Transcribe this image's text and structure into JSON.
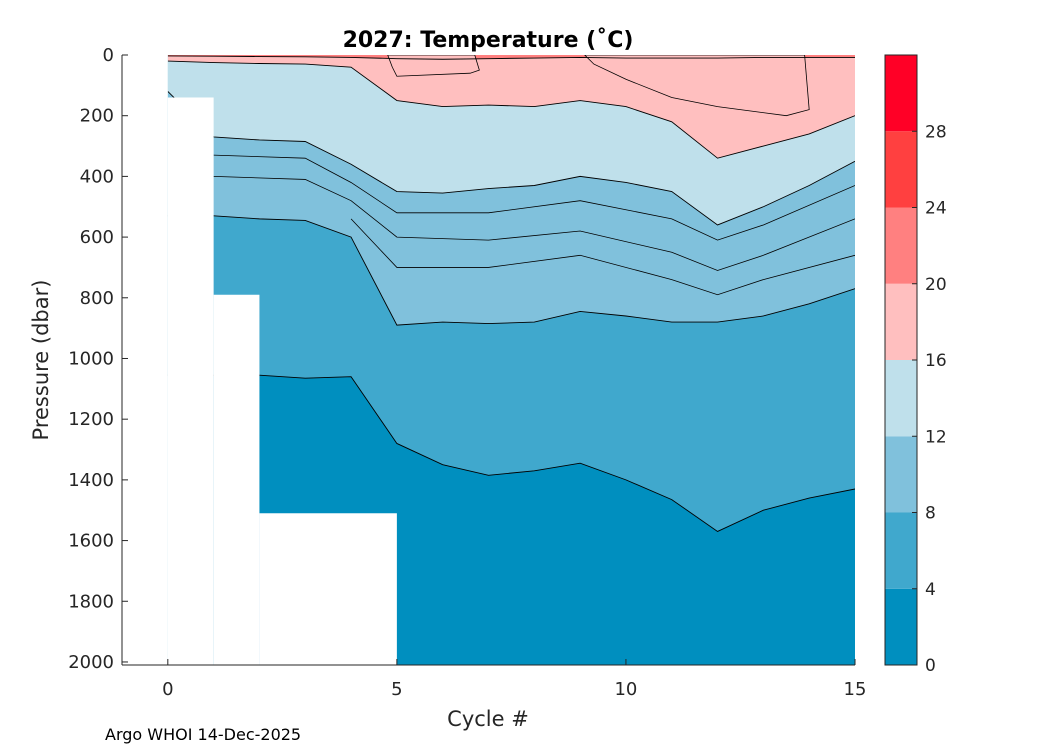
{
  "chart_data": {
    "type": "filled-contour",
    "title": "2027:  Temperature (˚C)",
    "xlabel": "Cycle #",
    "ylabel": "Pressure (dbar)",
    "xlim": [
      -1,
      15
    ],
    "ylim": [
      2010,
      0
    ],
    "x_ticks": [
      0,
      5,
      10,
      15
    ],
    "y_ticks": [
      0,
      200,
      400,
      600,
      800,
      1000,
      1200,
      1400,
      1600,
      1800,
      2000
    ],
    "colorbar": {
      "levels": [
        0,
        4,
        8,
        12,
        16,
        20,
        24,
        28,
        32
      ],
      "tick_labels": [
        0,
        4,
        8,
        12,
        16,
        20,
        24,
        28
      ],
      "colors": [
        "#008fbf",
        "#40a8cd",
        "#80c1dc",
        "#bfe0eb",
        "#ffbfbf",
        "#ff8080",
        "#ff4040",
        "#ff0026"
      ]
    },
    "profile_max_pressure": [
      {
        "cycle": 0,
        "pressure": 140
      },
      {
        "cycle": 1,
        "pressure": 790
      },
      {
        "cycle": 2,
        "pressure": 1510
      },
      {
        "cycle": 5,
        "pressure": 2010
      }
    ],
    "isotherms": [
      {
        "temp": 4,
        "points": [
          [
            2,
            1055
          ],
          [
            3,
            1065
          ],
          [
            4,
            1060
          ],
          [
            5,
            1280
          ],
          [
            6,
            1350
          ],
          [
            7,
            1385
          ],
          [
            8,
            1370
          ],
          [
            9,
            1345
          ],
          [
            10,
            1400
          ],
          [
            11,
            1465
          ],
          [
            12,
            1570
          ],
          [
            13,
            1500
          ],
          [
            14,
            1460
          ],
          [
            15,
            1430
          ]
        ]
      },
      {
        "temp": 8,
        "points": [
          [
            1,
            530
          ],
          [
            2,
            540
          ],
          [
            3,
            545
          ],
          [
            4,
            600
          ],
          [
            5,
            890
          ],
          [
            6,
            880
          ],
          [
            7,
            885
          ],
          [
            8,
            880
          ],
          [
            9,
            845
          ],
          [
            10,
            860
          ],
          [
            11,
            880
          ],
          [
            12,
            880
          ],
          [
            13,
            860
          ],
          [
            14,
            820
          ],
          [
            15,
            770
          ]
        ]
      },
      {
        "temp": 12,
        "points": [
          [
            0,
            120
          ],
          [
            1,
            270
          ],
          [
            2,
            280
          ],
          [
            3,
            285
          ],
          [
            4,
            360
          ],
          [
            5,
            450
          ],
          [
            6,
            455
          ],
          [
            7,
            440
          ],
          [
            8,
            430
          ],
          [
            9,
            400
          ],
          [
            10,
            420
          ],
          [
            11,
            450
          ],
          [
            12,
            560
          ],
          [
            13,
            500
          ],
          [
            14,
            430
          ],
          [
            15,
            350
          ]
        ]
      },
      {
        "temp": 16,
        "points": [
          [
            0,
            20
          ],
          [
            1,
            25
          ],
          [
            2,
            28
          ],
          [
            3,
            30
          ],
          [
            4,
            40
          ],
          [
            5,
            150
          ],
          [
            6,
            170
          ],
          [
            7,
            165
          ],
          [
            8,
            170
          ],
          [
            9,
            150
          ],
          [
            10,
            170
          ],
          [
            11,
            220
          ],
          [
            12,
            340
          ],
          [
            13,
            300
          ],
          [
            14,
            260
          ],
          [
            15,
            200
          ]
        ]
      },
      {
        "temp": 20,
        "points": [
          [
            0,
            3
          ],
          [
            1,
            4
          ],
          [
            2,
            5
          ],
          [
            3,
            6
          ],
          [
            4,
            8
          ],
          [
            5,
            12
          ],
          [
            6,
            14
          ],
          [
            7,
            12
          ],
          [
            8,
            10
          ],
          [
            9,
            8
          ],
          [
            10,
            10
          ],
          [
            11,
            10
          ],
          [
            12,
            10
          ],
          [
            13,
            8
          ],
          [
            14,
            8
          ],
          [
            15,
            8
          ]
        ]
      }
    ],
    "warm_patch_16C": [
      [
        4.8,
        0
      ],
      [
        6.7,
        0
      ],
      [
        6.8,
        50
      ],
      [
        6.6,
        60
      ],
      [
        5.0,
        70
      ],
      [
        4.9,
        40
      ]
    ],
    "warm_patch_16C_b": [
      [
        9.1,
        0
      ],
      [
        13.9,
        0
      ],
      [
        14.0,
        180
      ],
      [
        13.5,
        200
      ],
      [
        12.0,
        170
      ],
      [
        11.0,
        140
      ],
      [
        10.0,
        80
      ],
      [
        9.3,
        30
      ]
    ],
    "footer": "Argo WHOI 14-Dec-2025"
  }
}
